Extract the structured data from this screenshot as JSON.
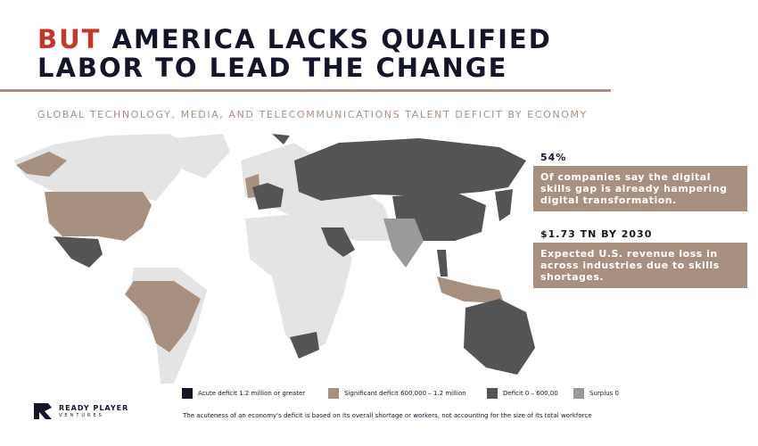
{
  "header": {
    "title_highlight": "BUT",
    "title_line1": "AMERICA LACKS QUALIFIED",
    "title_line2": "LABOR TO LEAD THE CHANGE",
    "subtitle": "GLOBAL TECHNOLOGY, MEDIA, AND TELECOMMUNICATIONS TALENT DEFICIT BY ECONOMY"
  },
  "stats": [
    {
      "headline": "54%",
      "text": "Of companies say the digital skills gap is already hampering digital transformation."
    },
    {
      "headline": "$1.73 TN BY 2030",
      "text": "Expected U.S. revenue loss in across industries due to skills shortages."
    }
  ],
  "legend": [
    {
      "label": "Acute deficit 1.2 million or greater",
      "color": "#15152a"
    },
    {
      "label": "Significant deficit 600,000 – 1.2 million",
      "color": "#a89080"
    },
    {
      "label": "Deficit 0 – 600,00",
      "color": "#545454"
    },
    {
      "label": "Surplus 0",
      "color": "#9a9a9a"
    }
  ],
  "footnote": "The acuteness of an economy's deficit is based on its overall shortage or workers, not accounting for the size of its total workforce",
  "logo": {
    "name": "READY PLAYER",
    "tagline": "VENTURES"
  }
}
